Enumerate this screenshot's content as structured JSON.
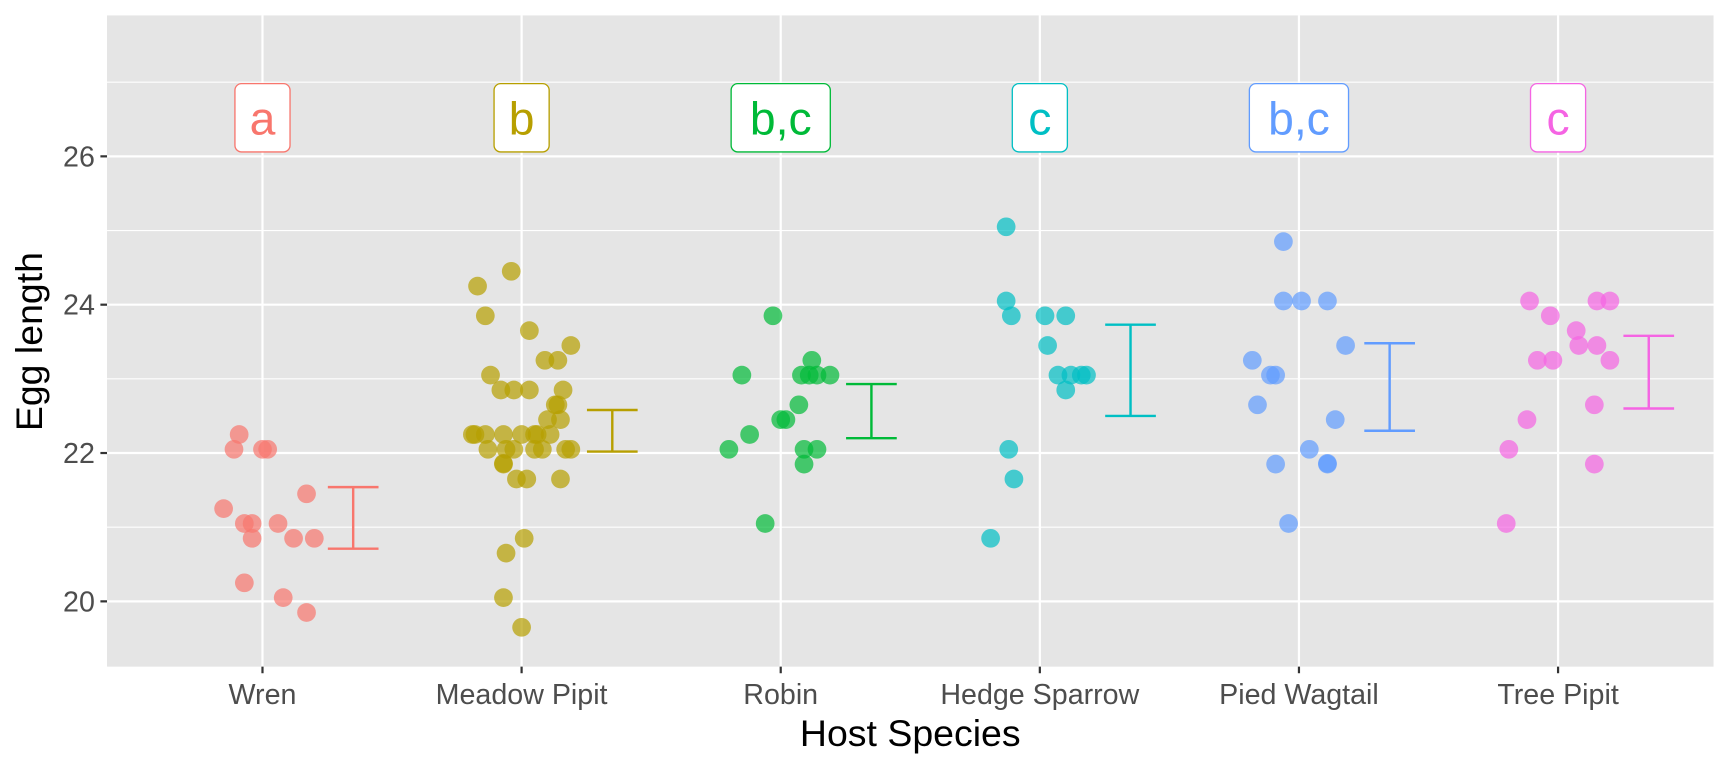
{
  "chart_data": {
    "type": "scatter",
    "xlabel": "Host Species",
    "ylabel": "Egg length",
    "categories": [
      "Wren",
      "Meadow Pipit",
      "Robin",
      "Hedge Sparrow",
      "Pied Wagtail",
      "Tree Pipit"
    ],
    "ylim": [
      19.12,
      27.9
    ],
    "yticks": [
      20,
      22,
      24,
      26
    ],
    "grid": true,
    "legend": "none",
    "colors": [
      "#F8766D",
      "#B79F00",
      "#00BA38",
      "#00BFC4",
      "#619CFF",
      "#F564E3"
    ],
    "group_letters": [
      "a",
      "b",
      "b,c",
      "c",
      "b,c",
      "c"
    ],
    "letter_y": 26.52,
    "series": [
      {
        "points": [
          [
            -0.09,
            22.25
          ],
          [
            -0.11,
            22.05
          ],
          [
            0,
            22.05
          ],
          [
            0.02,
            22.05
          ],
          [
            -0.15,
            21.25
          ],
          [
            -0.07,
            21.05
          ],
          [
            -0.04,
            21.05
          ],
          [
            0.06,
            21.05
          ],
          [
            -0.04,
            20.85
          ],
          [
            0.12,
            20.85
          ],
          [
            0.2,
            20.85
          ],
          [
            0.17,
            21.45
          ],
          [
            -0.07,
            20.25
          ],
          [
            0.08,
            20.05
          ],
          [
            0.17,
            19.85
          ]
        ],
        "errorbar": {
          "low": 20.71,
          "high": 21.54
        }
      },
      {
        "points": [
          [
            -0.17,
            24.25
          ],
          [
            -0.04,
            24.45
          ],
          [
            -0.14,
            23.85
          ],
          [
            0.03,
            23.65
          ],
          [
            0.19,
            23.45
          ],
          [
            0.09,
            23.25
          ],
          [
            0.14,
            23.25
          ],
          [
            -0.12,
            23.05
          ],
          [
            -0.08,
            22.85
          ],
          [
            -0.03,
            22.85
          ],
          [
            0.03,
            22.85
          ],
          [
            0.16,
            22.85
          ],
          [
            0.14,
            22.65
          ],
          [
            0.13,
            22.65
          ],
          [
            0.1,
            22.45
          ],
          [
            0.15,
            22.45
          ],
          [
            -0.19,
            22.25
          ],
          [
            -0.18,
            22.25
          ],
          [
            -0.14,
            22.25
          ],
          [
            -0.07,
            22.25
          ],
          [
            0,
            22.25
          ],
          [
            0.05,
            22.25
          ],
          [
            0.06,
            22.25
          ],
          [
            0.11,
            22.25
          ],
          [
            -0.13,
            22.05
          ],
          [
            -0.06,
            22.05
          ],
          [
            -0.03,
            22.05
          ],
          [
            0.05,
            22.05
          ],
          [
            0.08,
            22.05
          ],
          [
            0.17,
            22.05
          ],
          [
            0.19,
            22.05
          ],
          [
            -0.07,
            21.85
          ],
          [
            -0.07,
            21.86
          ],
          [
            -0.02,
            21.65
          ],
          [
            0.02,
            21.65
          ],
          [
            0.15,
            21.65
          ],
          [
            0.01,
            20.85
          ],
          [
            -0.06,
            20.65
          ],
          [
            -0.07,
            20.05
          ],
          [
            0,
            19.65
          ]
        ],
        "errorbar": {
          "low": 22.02,
          "high": 22.58
        }
      },
      {
        "points": [
          [
            -0.03,
            23.85
          ],
          [
            -0.15,
            23.05
          ],
          [
            0.08,
            23.05
          ],
          [
            0.11,
            23.05
          ],
          [
            0.14,
            23.05
          ],
          [
            0.19,
            23.05
          ],
          [
            0.12,
            23.25
          ],
          [
            0.07,
            22.65
          ],
          [
            0,
            22.45
          ],
          [
            0.02,
            22.45
          ],
          [
            -0.12,
            22.25
          ],
          [
            -0.2,
            22.05
          ],
          [
            0.09,
            22.05
          ],
          [
            0.14,
            22.05
          ],
          [
            0.09,
            21.85
          ],
          [
            -0.06,
            21.05
          ]
        ],
        "errorbar": {
          "low": 22.2,
          "high": 22.93
        }
      },
      {
        "points": [
          [
            -0.13,
            25.05
          ],
          [
            -0.13,
            24.05
          ],
          [
            -0.11,
            23.85
          ],
          [
            0.02,
            23.85
          ],
          [
            0.1,
            23.85
          ],
          [
            0.03,
            23.45
          ],
          [
            0.07,
            23.05
          ],
          [
            0.12,
            23.05
          ],
          [
            0.16,
            23.05
          ],
          [
            0.18,
            23.05
          ],
          [
            0.1,
            22.85
          ],
          [
            -0.12,
            22.05
          ],
          [
            -0.1,
            21.65
          ],
          [
            -0.19,
            20.85
          ]
        ],
        "errorbar": {
          "low": 22.5,
          "high": 23.73
        }
      },
      {
        "points": [
          [
            -0.06,
            24.85
          ],
          [
            -0.06,
            24.05
          ],
          [
            0.01,
            24.05
          ],
          [
            0.11,
            24.05
          ],
          [
            0.18,
            23.45
          ],
          [
            -0.18,
            23.25
          ],
          [
            -0.11,
            23.05
          ],
          [
            -0.09,
            23.05
          ],
          [
            -0.16,
            22.65
          ],
          [
            0.14,
            22.45
          ],
          [
            0.04,
            22.05
          ],
          [
            -0.09,
            21.85
          ],
          [
            0.11,
            21.85
          ],
          [
            0.11,
            21.86
          ],
          [
            -0.04,
            21.05
          ]
        ],
        "errorbar": {
          "low": 22.3,
          "high": 23.48
        }
      },
      {
        "points": [
          [
            -0.11,
            24.05
          ],
          [
            0.15,
            24.05
          ],
          [
            0.2,
            24.05
          ],
          [
            -0.03,
            23.85
          ],
          [
            0.07,
            23.65
          ],
          [
            0.08,
            23.45
          ],
          [
            0.15,
            23.45
          ],
          [
            -0.08,
            23.25
          ],
          [
            -0.02,
            23.25
          ],
          [
            0.2,
            23.25
          ],
          [
            0.14,
            22.65
          ],
          [
            -0.12,
            22.45
          ],
          [
            -0.19,
            22.05
          ],
          [
            0.14,
            21.85
          ],
          [
            -0.2,
            21.05
          ]
        ],
        "errorbar": {
          "low": 22.6,
          "high": 23.58
        }
      }
    ]
  }
}
